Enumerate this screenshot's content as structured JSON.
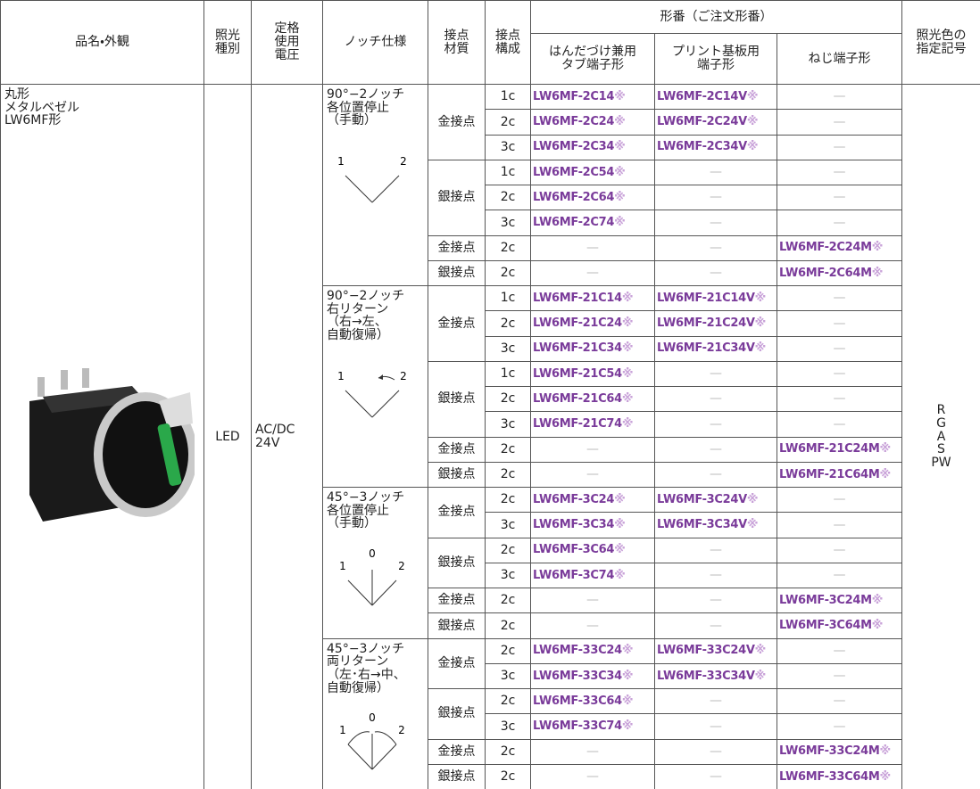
{
  "header": {
    "product": "品名・外観",
    "lighting": "照光\n種別",
    "voltage": "定格\n使用\n電圧",
    "notch": "ノッチ仕様",
    "material": "接点\n材質",
    "config": "接点\n構成",
    "model": "形番（ご注文形番）",
    "solder": "はんだづけ兼用\nタブ端子形",
    "pcb": "プリント基板用\n端子形",
    "screw": "ねじ端子形",
    "colors": "照光色の\n指定記号"
  },
  "product": "丸形\nメタルベゼル\nLW6MF形",
  "lighting": "LED",
  "voltage": "AC/DC\n24V",
  "colors": "R\nG\nA\nS\nPW",
  "notches": [
    {
      "spec": "90°−2ノッチ\n各位置停止\n（手動）",
      "diagram_labels": [
        "1",
        "2"
      ],
      "materials": [
        {
          "material": "金接点",
          "rows": [
            [
              "1c",
              "LW6MF-2C14※",
              "LW6MF-2C14V※",
              "—"
            ],
            [
              "2c",
              "LW6MF-2C24※",
              "LW6MF-2C24V※",
              "—"
            ],
            [
              "3c",
              "LW6MF-2C34※",
              "LW6MF-2C34V※",
              "—"
            ]
          ]
        },
        {
          "material": "銀接点",
          "rows": [
            [
              "1c",
              "LW6MF-2C54※",
              "—",
              "—"
            ],
            [
              "2c",
              "LW6MF-2C64※",
              "—",
              "—"
            ],
            [
              "3c",
              "LW6MF-2C74※",
              "—",
              "—"
            ]
          ]
        },
        {
          "material": "金接点",
          "rows": [
            [
              "2c",
              "—",
              "—",
              "LW6MF-2C24M※"
            ]
          ]
        },
        {
          "material": "銀接点",
          "rows": [
            [
              "2c",
              "—",
              "—",
              "LW6MF-2C64M※"
            ]
          ]
        }
      ]
    },
    {
      "spec": "90°−2ノッチ\n右リターン\n（右→左、\n 自動復帰）",
      "diagram_labels": [
        "1",
        "2"
      ],
      "materials": [
        {
          "material": "金接点",
          "rows": [
            [
              "1c",
              "LW6MF-21C14※",
              "LW6MF-21C14V※",
              "—"
            ],
            [
              "2c",
              "LW6MF-21C24※",
              "LW6MF-21C24V※",
              "—"
            ],
            [
              "3c",
              "LW6MF-21C34※",
              "LW6MF-21C34V※",
              "—"
            ]
          ]
        },
        {
          "material": "銀接点",
          "rows": [
            [
              "1c",
              "LW6MF-21C54※",
              "—",
              "—"
            ],
            [
              "2c",
              "LW6MF-21C64※",
              "—",
              "—"
            ],
            [
              "3c",
              "LW6MF-21C74※",
              "—",
              "—"
            ]
          ]
        },
        {
          "material": "金接点",
          "rows": [
            [
              "2c",
              "—",
              "—",
              "LW6MF-21C24M※"
            ]
          ]
        },
        {
          "material": "銀接点",
          "rows": [
            [
              "2c",
              "—",
              "—",
              "LW6MF-21C64M※"
            ]
          ]
        }
      ]
    },
    {
      "spec": "45°−3ノッチ\n各位置停止\n（手動）",
      "diagram_labels": [
        "1",
        "0",
        "2"
      ],
      "materials": [
        {
          "material": "金接点",
          "rows": [
            [
              "2c",
              "LW6MF-3C24※",
              "LW6MF-3C24V※",
              "—"
            ],
            [
              "3c",
              "LW6MF-3C34※",
              "LW6MF-3C34V※",
              "—"
            ]
          ]
        },
        {
          "material": "銀接点",
          "rows": [
            [
              "2c",
              "LW6MF-3C64※",
              "—",
              "—"
            ],
            [
              "3c",
              "LW6MF-3C74※",
              "—",
              "—"
            ]
          ]
        },
        {
          "material": "金接点",
          "rows": [
            [
              "2c",
              "—",
              "—",
              "LW6MF-3C24M※"
            ]
          ]
        },
        {
          "material": "銀接点",
          "rows": [
            [
              "2c",
              "—",
              "—",
              "LW6MF-3C64M※"
            ]
          ]
        }
      ]
    },
    {
      "spec": "45°−3ノッチ\n両リターン\n（左･右→中、\n 自動復帰）",
      "diagram_labels": [
        "1",
        "0",
        "2"
      ],
      "materials": [
        {
          "material": "金接点",
          "rows": [
            [
              "2c",
              "LW6MF-33C24※",
              "LW6MF-33C24V※",
              "—"
            ],
            [
              "3c",
              "LW6MF-33C34※",
              "LW6MF-33C34V※",
              "—"
            ]
          ]
        },
        {
          "material": "銀接点",
          "rows": [
            [
              "2c",
              "LW6MF-33C64※",
              "—",
              "—"
            ],
            [
              "3c",
              "LW6MF-33C74※",
              "—",
              "—"
            ]
          ]
        },
        {
          "material": "金接点",
          "rows": [
            [
              "2c",
              "—",
              "—",
              "LW6MF-33C24M※"
            ]
          ]
        },
        {
          "material": "銀接点",
          "rows": [
            [
              "2c",
              "—",
              "—",
              "LW6MF-33C64M※"
            ]
          ]
        }
      ]
    }
  ]
}
